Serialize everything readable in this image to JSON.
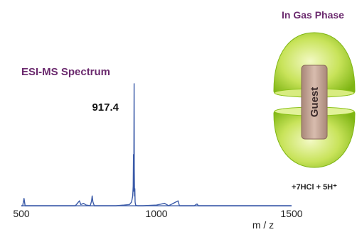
{
  "chart_data": {
    "type": "line",
    "title": "ESI-MS Spectrum",
    "xlabel": "m / z",
    "ylabel": "",
    "xlim": [
      500,
      1500
    ],
    "ylim": [
      0,
      100
    ],
    "x_ticks": [
      "500",
      "1000",
      "1500"
    ],
    "grid": false,
    "series": [
      {
        "values": [
          [
            500,
            0
          ],
          [
            505,
            0
          ],
          [
            510,
            6
          ],
          [
            514,
            0
          ],
          [
            600,
            0
          ],
          [
            700,
            0
          ],
          [
            715,
            4
          ],
          [
            720,
            1
          ],
          [
            730,
            2
          ],
          [
            740,
            0.5
          ],
          [
            755,
            0
          ],
          [
            760,
            4
          ],
          [
            762,
            8
          ],
          [
            765,
            3
          ],
          [
            770,
            0
          ],
          [
            800,
            0
          ],
          [
            850,
            0
          ],
          [
            880,
            0.5
          ],
          [
            900,
            1
          ],
          [
            908,
            3
          ],
          [
            912,
            8
          ],
          [
            914,
            16
          ],
          [
            915,
            42
          ],
          [
            916,
            12
          ],
          [
            917.4,
            100
          ],
          [
            918,
            30
          ],
          [
            919,
            8
          ],
          [
            920,
            14
          ],
          [
            921,
            3
          ],
          [
            923,
            0.5
          ],
          [
            930,
            0
          ],
          [
            950,
            0
          ],
          [
            1000,
            0.5
          ],
          [
            1030,
            2
          ],
          [
            1045,
            0
          ],
          [
            1080,
            4
          ],
          [
            1085,
            0
          ],
          [
            1140,
            0
          ],
          [
            1150,
            1.5
          ],
          [
            1155,
            0
          ],
          [
            1200,
            0
          ],
          [
            1300,
            0
          ],
          [
            1400,
            0
          ],
          [
            1500,
            0
          ]
        ]
      }
    ],
    "annotations": [
      "917.4"
    ],
    "color": "#3a5aa8"
  },
  "inset": {
    "title": "In Gas Phase",
    "guest_label": "Guest",
    "equation": "+7HCl + 5H⁺"
  },
  "colors": {
    "title": "#6b2a6e",
    "spectrum": "#3a5aa8",
    "capsule_light": "#e8f4a0",
    "capsule_dark": "#8cc21a",
    "guest_fill": "#c9a99c"
  }
}
